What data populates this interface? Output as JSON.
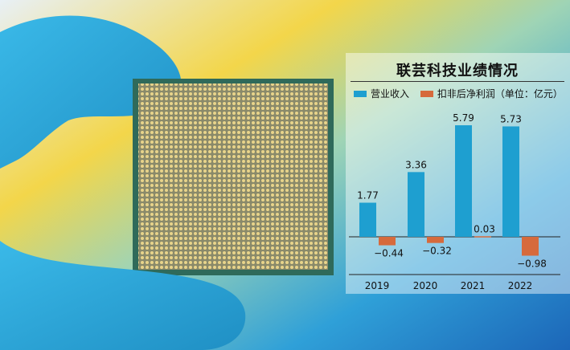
{
  "chart_data": {
    "type": "bar",
    "title": "联芸科技业绩情况",
    "legend_position": "top",
    "categories": [
      "2019",
      "2020",
      "2021",
      "2022"
    ],
    "series": [
      {
        "name": "营业收入",
        "values": [
          1.77,
          3.36,
          5.79,
          5.73
        ],
        "color": "#1e9fd0"
      },
      {
        "name": "扣非后净利润（单位：亿元）",
        "values": [
          -0.44,
          -0.32,
          0.03,
          -0.98
        ],
        "color": "#d66a3c"
      }
    ],
    "ylim": [
      -1.2,
      6.5
    ],
    "grid": false
  }
}
